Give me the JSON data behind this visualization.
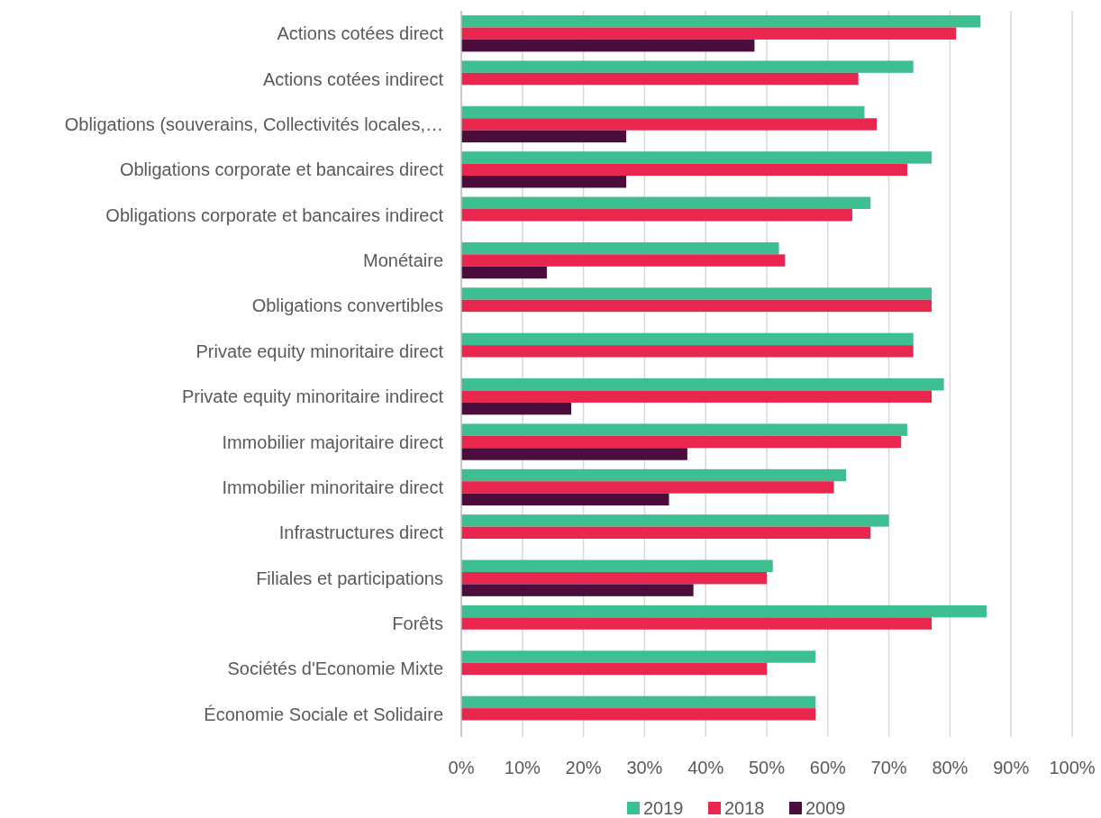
{
  "chart_data": {
    "type": "bar",
    "orientation": "horizontal",
    "categories": [
      "Actions cotées direct",
      "Actions cotées indirect",
      "Obligations (souverains, Collectivités locales,…",
      "Obligations corporate et bancaires direct",
      "Obligations corporate et bancaires indirect",
      "Monétaire",
      "Obligations convertibles",
      "Private equity minoritaire direct",
      "Private equity minoritaire indirect",
      "Immobilier majoritaire direct",
      "Immobilier minoritaire direct",
      "Infrastructures direct",
      "Filiales et participations",
      "Forêts",
      "Sociétés d'Economie Mixte",
      "Économie Sociale et Solidaire"
    ],
    "series": [
      {
        "name": "2019",
        "color": "#3dbf91",
        "values": [
          85,
          74,
          66,
          77,
          67,
          52,
          77,
          74,
          79,
          73,
          63,
          70,
          51,
          86,
          58,
          58
        ]
      },
      {
        "name": "2018",
        "color": "#e8264e",
        "values": [
          81,
          65,
          68,
          73,
          64,
          53,
          77,
          74,
          77,
          72,
          61,
          67,
          50,
          77,
          50,
          58
        ]
      },
      {
        "name": "2009",
        "color": "#4b0d3b",
        "values": [
          48,
          null,
          27,
          27,
          null,
          14,
          null,
          null,
          18,
          37,
          34,
          null,
          38,
          null,
          null,
          null
        ]
      }
    ],
    "xlim": [
      0,
      100
    ],
    "xticks": [
      {
        "value": 0,
        "label": "0%"
      },
      {
        "value": 10,
        "label": "10%"
      },
      {
        "value": 20,
        "label": "20%"
      },
      {
        "value": 30,
        "label": "30%"
      },
      {
        "value": 40,
        "label": "40%"
      },
      {
        "value": 50,
        "label": "50%"
      },
      {
        "value": 60,
        "label": "60%"
      },
      {
        "value": 70,
        "label": "70%"
      },
      {
        "value": 80,
        "label": "80%"
      },
      {
        "value": 90,
        "label": "90%"
      },
      {
        "value": 100,
        "label": "100%"
      }
    ],
    "grid": "x",
    "legend": "bottom"
  }
}
